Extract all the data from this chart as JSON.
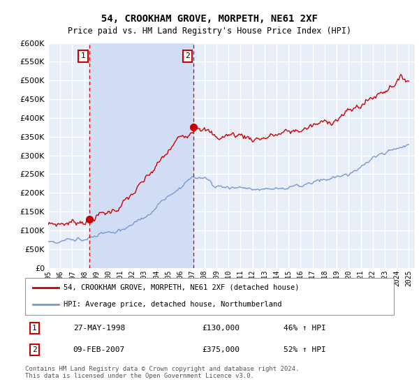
{
  "title": "54, CROOKHAM GROVE, MORPETH, NE61 2XF",
  "subtitle": "Price paid vs. HM Land Registry's House Price Index (HPI)",
  "ylim": [
    0,
    600000
  ],
  "yticks": [
    0,
    50000,
    100000,
    150000,
    200000,
    250000,
    300000,
    350000,
    400000,
    450000,
    500000,
    550000,
    600000
  ],
  "xlim": [
    1995.0,
    2025.5
  ],
  "bg_color": "#e8eef8",
  "grid_color": "#ffffff",
  "sale1_date": 1998.41,
  "sale1_price": 130000,
  "sale2_date": 2007.1,
  "sale2_price": 375000,
  "legend_line1": "54, CROOKHAM GROVE, MORPETH, NE61 2XF (detached house)",
  "legend_line2": "HPI: Average price, detached house, Northumberland",
  "table_row1": [
    "1",
    "27-MAY-1998",
    "£130,000",
    "46% ↑ HPI"
  ],
  "table_row2": [
    "2",
    "09-FEB-2007",
    "£375,000",
    "52% ↑ HPI"
  ],
  "footer": "Contains HM Land Registry data © Crown copyright and database right 2024.\nThis data is licensed under the Open Government Licence v3.0.",
  "red_color": "#cc0000",
  "blue_color": "#7799cc",
  "shade_color": "#d0ddf5"
}
